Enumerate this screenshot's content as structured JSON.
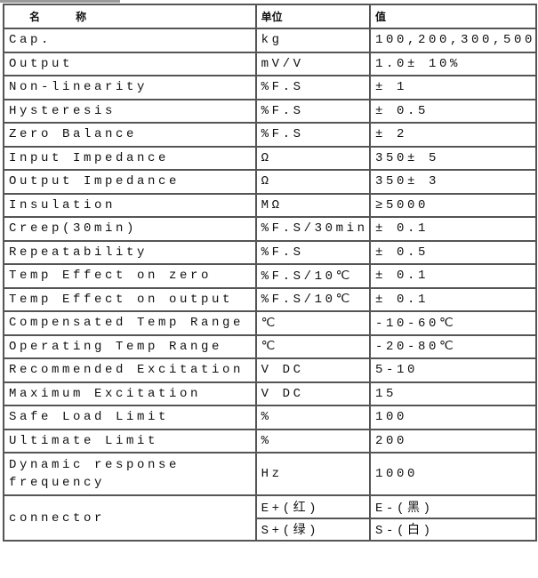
{
  "header": {
    "name": "名 称",
    "unit": "单位",
    "value": "值"
  },
  "rows": [
    {
      "name": "Cap.",
      "unit": "kg",
      "value": "100,200,300,500"
    },
    {
      "name": "Output",
      "unit": "mV/V",
      "value": "1.0± 10%"
    },
    {
      "name": "Non-linearity",
      "unit": "%F.S",
      "value": "± 1"
    },
    {
      "name": "Hysteresis",
      "unit": "%F.S",
      "value": "± 0.5"
    },
    {
      "name": "Zero Balance",
      "unit": "%F.S",
      "value": "± 2"
    },
    {
      "name": "Input Impedance",
      "unit": "Ω",
      "value": "350± 5"
    },
    {
      "name": "Output  Impedance",
      "unit": "Ω",
      "value": "350± 3"
    },
    {
      "name": "Insulation",
      "unit": "MΩ",
      "value": "≥5000"
    },
    {
      "name": "Creep(30min)",
      "unit": "%F.S/30min",
      "value": "± 0.1"
    },
    {
      "name": "Repeatability",
      "unit": "%F.S",
      "value": "± 0.5"
    },
    {
      "name": "Temp Effect on zero",
      "unit": "%F.S/10℃",
      "value": "± 0.1"
    },
    {
      "name": "Temp Effect on output",
      "unit": "%F.S/10℃",
      "value": "± 0.1"
    },
    {
      "name": "Compensated Temp Range",
      "unit": "℃",
      "value": "-10-60℃"
    },
    {
      "name": "Operating Temp Range",
      "unit": "℃",
      "value": "-20-80℃"
    },
    {
      "name": "Recommended Excitation",
      "unit": "V DC",
      "value": "5-10"
    },
    {
      "name": "Maximum Excitation",
      "unit": "V DC",
      "value": "15"
    },
    {
      "name": "Safe Load Limit",
      "unit": "%",
      "value": "100"
    },
    {
      "name": "Ultimate Limit",
      "unit": "%",
      "value": "200"
    }
  ],
  "dynamic": {
    "name_line1": "Dynamic response",
    "name_line2": "frequency",
    "unit": "Hz",
    "value": "1000"
  },
  "connector": {
    "name": "connector",
    "e_plus": "E+(红)",
    "e_minus": "E-(黑)",
    "s_plus": "S+(绿)",
    "s_minus": "S-(白)"
  }
}
